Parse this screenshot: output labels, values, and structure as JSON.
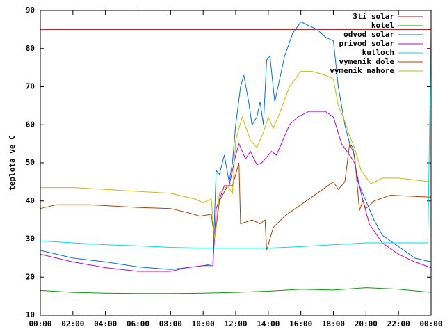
{
  "chart_data": {
    "type": "line",
    "y_label": "teplota ve C",
    "xlim": [
      0,
      24
    ],
    "xticks": [
      {
        "value": 0,
        "label": "00:00"
      },
      {
        "value": 2,
        "label": "02:00"
      },
      {
        "value": 4,
        "label": "04:00"
      },
      {
        "value": 6,
        "label": "06:00"
      },
      {
        "value": 8,
        "label": "08:00"
      },
      {
        "value": 10,
        "label": "10:00"
      },
      {
        "value": 12,
        "label": "12:00"
      },
      {
        "value": 14,
        "label": "14:00"
      },
      {
        "value": 16,
        "label": "16:00"
      },
      {
        "value": 18,
        "label": "18:00"
      },
      {
        "value": 20,
        "label": "20:00"
      },
      {
        "value": 22,
        "label": "22:00"
      },
      {
        "value": 24,
        "label": "00:00"
      }
    ],
    "ylim": [
      10,
      90
    ],
    "yticks": [
      10,
      20,
      30,
      40,
      50,
      60,
      70,
      80,
      90
    ],
    "legend": "top-right",
    "series": [
      {
        "name": "3ti solar",
        "color": "#c00000",
        "x": [
          0,
          24
        ],
        "values": [
          85,
          85
        ]
      },
      {
        "name": "kotel",
        "color": "#00a000",
        "x": [
          0,
          2,
          4,
          6,
          8,
          10,
          12,
          14,
          16,
          18,
          20,
          22,
          24
        ],
        "values": [
          16.5,
          16,
          15.8,
          15.7,
          15.7,
          15.8,
          16,
          16.3,
          16.8,
          16.6,
          17.2,
          16.8,
          16
        ]
      },
      {
        "name": "odvod solar",
        "color": "#0070e0",
        "x": [
          0,
          2,
          4,
          6,
          8,
          9,
          10,
          10.6,
          10.8,
          11,
          11.3,
          11.6,
          11.8,
          12,
          12.3,
          12.5,
          12.8,
          13,
          13.3,
          13.5,
          13.7,
          13.9,
          14.1,
          14.4,
          14.7,
          15,
          15.5,
          16,
          16.5,
          17,
          17.5,
          18,
          18.3,
          18.7,
          19,
          19.2,
          19.5,
          20,
          20.5,
          21,
          22,
          23,
          24
        ],
        "values": [
          27,
          25,
          24,
          22.7,
          22,
          22.5,
          23,
          23.5,
          48,
          47,
          52,
          45,
          50,
          60,
          70,
          73,
          66,
          60,
          62,
          66,
          60,
          77,
          78,
          66,
          72,
          78,
          84,
          87,
          86,
          85,
          83,
          82,
          70,
          60,
          55,
          54,
          45,
          40,
          35,
          31,
          28,
          25,
          24
        ]
      },
      {
        "name": "privod solar",
        "color": "#c000e0",
        "x": [
          0,
          2,
          4,
          6,
          8,
          9,
          10,
          10.6,
          10.8,
          11.3,
          11.6,
          12,
          12.2,
          12.6,
          12.9,
          13.3,
          13.6,
          14.2,
          14.5,
          14.8,
          15.3,
          15.8,
          16.5,
          17.5,
          18,
          18.5,
          19,
          19.3,
          19.7,
          20.2,
          21,
          22,
          23,
          24
        ],
        "values": [
          26,
          24,
          22.5,
          21.5,
          21.5,
          22.5,
          23,
          23,
          38,
          44,
          44,
          52,
          55,
          51,
          53,
          49.5,
          50,
          53,
          52,
          55,
          60,
          62,
          63.5,
          63.5,
          62,
          55,
          52,
          50,
          42,
          34,
          29,
          26,
          24,
          22.5
        ]
      },
      {
        "name": "kutloch",
        "color": "#00dddd",
        "x": [
          0,
          2,
          4,
          6,
          8,
          10,
          12,
          14,
          16,
          18,
          20,
          22,
          23.8,
          24
        ],
        "values": [
          29.5,
          29,
          28.5,
          28.2,
          27.8,
          27.6,
          27.6,
          27.6,
          28,
          28.5,
          29,
          29,
          29,
          85
        ]
      },
      {
        "name": "vymenik dole",
        "color": "#b04000",
        "x": [
          0,
          1,
          3,
          6,
          8,
          9,
          9.8,
          10.5,
          10.7,
          11,
          11.5,
          11.8,
          12.2,
          12.3,
          13,
          13.5,
          13.8,
          13.9,
          14.3,
          15,
          16,
          17,
          18,
          18.3,
          18.7,
          19,
          19.3,
          19.6,
          19.8,
          20,
          20.5,
          21.5,
          23,
          24
        ],
        "values": [
          38,
          39,
          39,
          38.3,
          38,
          37,
          36,
          36.5,
          30,
          40,
          44,
          44,
          50,
          34,
          35,
          34,
          35,
          27,
          33,
          36,
          39,
          42,
          45,
          43,
          45,
          55,
          52,
          37.5,
          40,
          38,
          40,
          41.5,
          41.2,
          41
        ]
      },
      {
        "name": "vymenik nahore",
        "color": "#c0c000",
        "x": [
          0,
          2,
          4,
          6,
          8,
          9.5,
          10,
          10.5,
          10.7,
          11,
          11.5,
          11.8,
          12,
          12.4,
          12.9,
          13.3,
          13.7,
          14,
          14.3,
          14.7,
          15.3,
          16,
          16.7,
          17.5,
          18,
          18.3,
          18.6,
          19,
          19.3,
          19.7,
          20.3,
          21,
          22,
          23,
          24
        ],
        "values": [
          43.5,
          43.5,
          43,
          42.5,
          42,
          40.5,
          39.5,
          40.5,
          30,
          42,
          44,
          42,
          56,
          62,
          56,
          54,
          58,
          62,
          59,
          63,
          70,
          74,
          74,
          73,
          72,
          65,
          62,
          57,
          54,
          48,
          44.5,
          46,
          46,
          45.5,
          45
        ]
      }
    ]
  }
}
